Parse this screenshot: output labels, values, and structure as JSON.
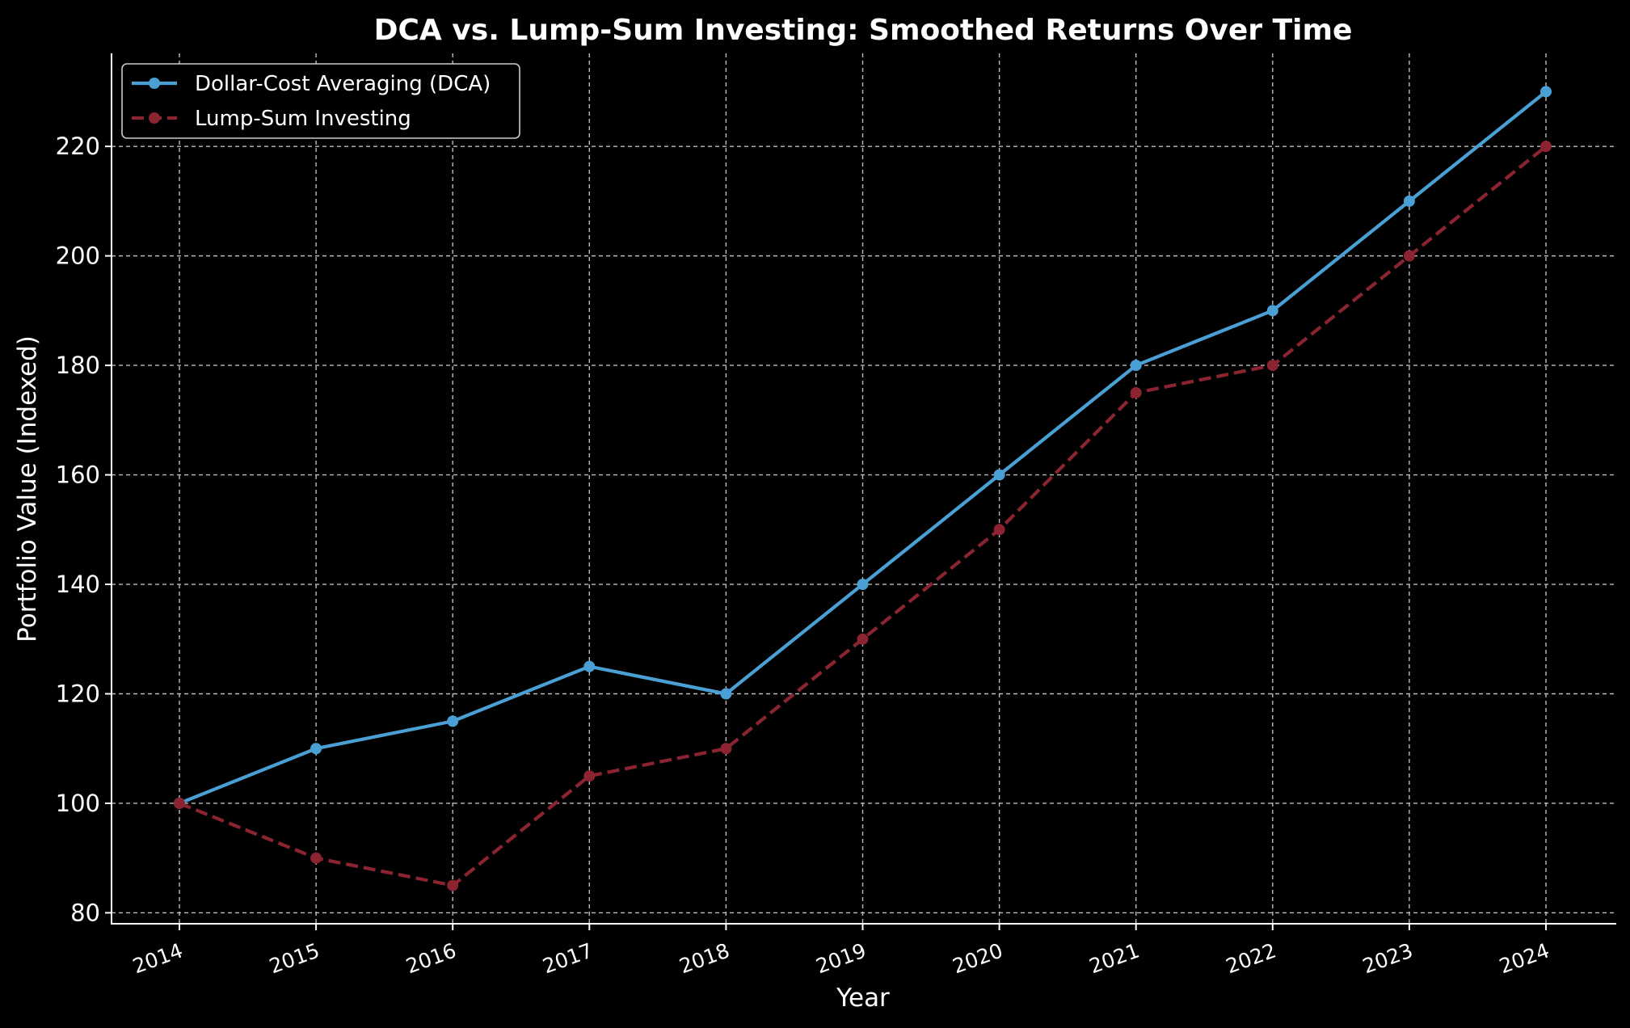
{
  "chart_data": {
    "type": "line",
    "title": "DCA vs. Lump-Sum Investing: Smoothed Returns Over Time",
    "xlabel": "Year",
    "ylabel": "Portfolio Value (Indexed)",
    "x": [
      "2014",
      "2015",
      "2016",
      "2017",
      "2018",
      "2019",
      "2020",
      "2021",
      "2022",
      "2023",
      "2024"
    ],
    "ylim": [
      78,
      237
    ],
    "yticks": [
      80,
      100,
      120,
      140,
      160,
      180,
      200,
      220
    ],
    "grid": true,
    "legend_position": "top-left",
    "series": [
      {
        "name": "Dollar-Cost Averaging (DCA)",
        "color": "#4a9fd4",
        "line_style": "solid",
        "marker": "circle",
        "values": [
          100,
          110,
          115,
          125,
          120,
          140,
          160,
          180,
          190,
          210,
          230
        ]
      },
      {
        "name": "Lump-Sum Investing",
        "color": "#8b2430",
        "line_style": "dashed",
        "marker": "circle",
        "values": [
          100,
          90,
          85,
          105,
          110,
          130,
          150,
          175,
          180,
          200,
          220
        ]
      }
    ]
  }
}
